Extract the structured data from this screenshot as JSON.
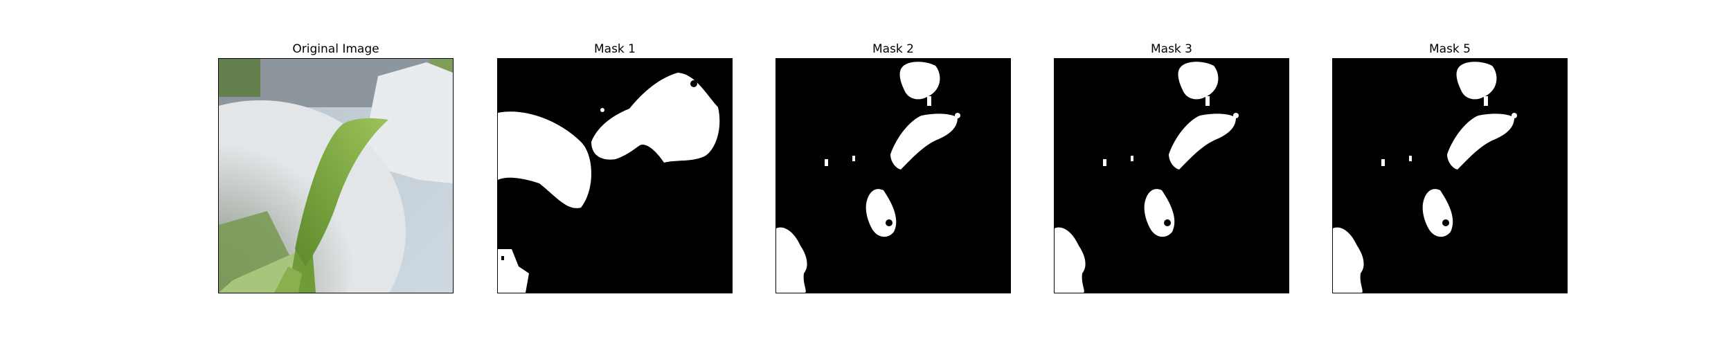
{
  "figure": {
    "panels": [
      {
        "id": "original",
        "title": "Original Image"
      },
      {
        "id": "mask1",
        "title": "Mask 1"
      },
      {
        "id": "mask2",
        "title": "Mask 2"
      },
      {
        "id": "mask3",
        "title": "Mask 3"
      },
      {
        "id": "mask5",
        "title": "Mask 5"
      }
    ]
  },
  "colors": {
    "mask_foreground": "#ffffff",
    "mask_background": "#000000",
    "leaf_green": "#6e9a3a",
    "cup_white": "#dfe3e6",
    "table_blue": "#c7d3dc"
  }
}
